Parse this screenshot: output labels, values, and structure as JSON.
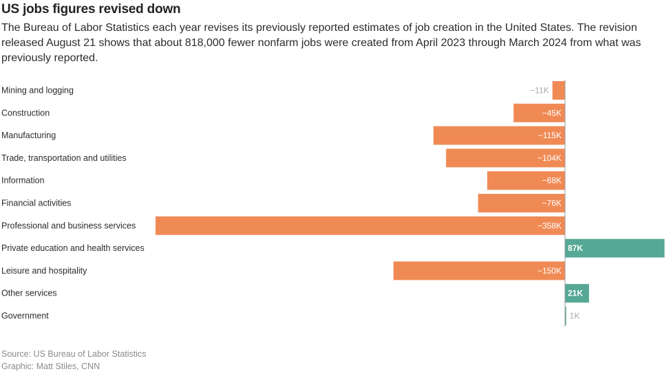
{
  "header": {
    "title": "US jobs figures revised down",
    "subtitle": "The Bureau of Labor Statistics each year revises its previously reported estimates of job creation in the United States. The revision released August 21 shows that about 818,000 fewer nonfarm jobs were created from April 2023 through March 2024 from what was previously reported."
  },
  "footer": {
    "source": "Source: US Bureau of Labor Statistics",
    "credit": "Graphic: Matt Stiles, CNN"
  },
  "colors": {
    "negative": "#f08a55",
    "positive": "#55a895",
    "inside_label": "#ffffff",
    "outside_label": "#aaaaaa"
  },
  "chart_data": {
    "type": "bar",
    "orientation": "horizontal",
    "categories": [
      "Mining and logging",
      "Construction",
      "Manufacturing",
      "Trade, transportation and utilities",
      "Information",
      "Financial activities",
      "Professional and business services",
      "Private education and health services",
      "Leisure and hospitality",
      "Other services",
      "Government"
    ],
    "values": [
      -11,
      -45,
      -115,
      -104,
      -68,
      -76,
      -358,
      87,
      -150,
      21,
      1
    ],
    "labels": [
      "−11K",
      "−45K",
      "−115K",
      "−104K",
      "−68K",
      "−76K",
      "−358K",
      "87K",
      "−150K",
      "21K",
      "1K"
    ],
    "unit": "K",
    "xlim": [
      -358,
      87
    ]
  }
}
